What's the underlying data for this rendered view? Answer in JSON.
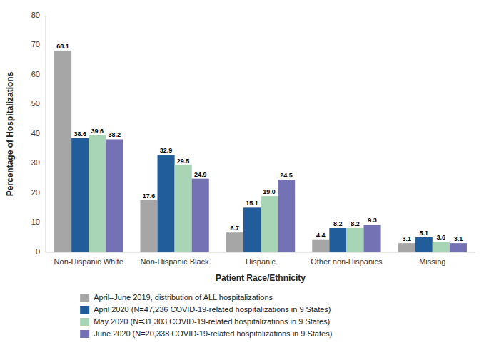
{
  "chart_data": {
    "type": "bar",
    "xlabel": "Patient Race/Ethnicity",
    "ylabel": "Percentage of Hospitalizations",
    "categories": [
      "Non-Hispanic White",
      "Non-Hispanic Black",
      "Hispanic",
      "Other non-Hispanics",
      "Missing"
    ],
    "series": [
      {
        "name": "April–June 2019, distribution of ALL hospitalizations",
        "color": "#a6a6a6",
        "values": [
          68.1,
          17.6,
          6.7,
          4.4,
          3.1
        ],
        "value_labels": [
          "68.1",
          "17.6",
          "6.7",
          "4.4",
          "3.1"
        ]
      },
      {
        "name": "April 2020 (N=47,236 COVID-19-related hospitalizations in 9 States)",
        "color": "#215d9b",
        "values": [
          38.6,
          32.9,
          15.1,
          8.2,
          5.1
        ],
        "value_labels": [
          "38.6",
          "32.9",
          "15.1",
          "8.2",
          "5.1"
        ]
      },
      {
        "name": "May 2020 (N=31,303 COVID-19-related hospitalizations in 9 States)",
        "color": "#a8d5b5",
        "values": [
          39.6,
          29.5,
          19.0,
          8.2,
          3.6
        ],
        "value_labels": [
          "39.6",
          "29.5",
          "19.0",
          "8.2",
          "3.6"
        ]
      },
      {
        "name": "June 2020 (N=20,338 COVID-19-related hospitalizations in 9 States)",
        "color": "#7472b4",
        "values": [
          38.2,
          24.9,
          24.5,
          9.3,
          3.1
        ],
        "value_labels": [
          "38.2",
          "24.9",
          "24.5",
          "9.3",
          "3.1"
        ]
      }
    ],
    "ylim": [
      0,
      80
    ],
    "yticks": [
      0,
      10,
      20,
      30,
      40,
      50,
      60,
      70,
      80
    ],
    "grid": false,
    "data_labels": true,
    "legend": "bottom"
  }
}
